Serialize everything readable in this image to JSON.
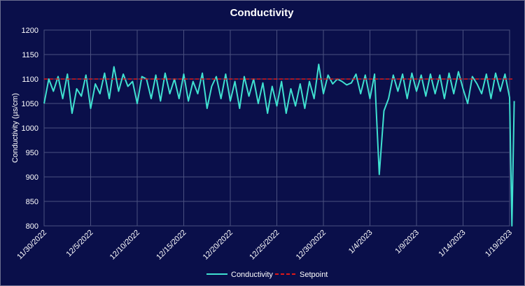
{
  "chart_data": {
    "type": "line",
    "title": "Conductivity",
    "ylabel": "Conductivity (µs/cm)",
    "xlabel": "",
    "ylim": [
      800,
      1200
    ],
    "yticks": [
      800,
      850,
      900,
      950,
      1000,
      1050,
      1100,
      1150,
      1200
    ],
    "xlim": [
      "2022-11-30",
      "2023-01-19"
    ],
    "xticks": [
      "11/30/2022",
      "12/5/2022",
      "12/10/2022",
      "12/15/2022",
      "12/20/2022",
      "12/25/2022",
      "12/30/2022",
      "1/4/2023",
      "1/9/2023",
      "1/14/2023",
      "1/19/2023"
    ],
    "grid": true,
    "legend": "bottom",
    "colors": {
      "conductivity": "#3fe0d0",
      "setpoint": "#e01818",
      "background": "#0a0f4a",
      "grid": "#4a5080"
    },
    "series": [
      {
        "name": "Conductivity",
        "style": "solid",
        "x": [
          "2022-11-30",
          "2022-11-30T12:00",
          "2022-12-01",
          "2022-12-01T12:00",
          "2022-12-02",
          "2022-12-02T12:00",
          "2022-12-03",
          "2022-12-03T12:00",
          "2022-12-04",
          "2022-12-04T12:00",
          "2022-12-05",
          "2022-12-05T12:00",
          "2022-12-06",
          "2022-12-06T12:00",
          "2022-12-07",
          "2022-12-07T12:00",
          "2022-12-08",
          "2022-12-08T12:00",
          "2022-12-09",
          "2022-12-09T12:00",
          "2022-12-10",
          "2022-12-10T12:00",
          "2022-12-11",
          "2022-12-11T12:00",
          "2022-12-12",
          "2022-12-12T12:00",
          "2022-12-13",
          "2022-12-13T12:00",
          "2022-12-14",
          "2022-12-14T12:00",
          "2022-12-15",
          "2022-12-15T12:00",
          "2022-12-16",
          "2022-12-16T12:00",
          "2022-12-17",
          "2022-12-17T12:00",
          "2022-12-18",
          "2022-12-18T12:00",
          "2022-12-19",
          "2022-12-19T12:00",
          "2022-12-20",
          "2022-12-20T12:00",
          "2022-12-21",
          "2022-12-21T12:00",
          "2022-12-22",
          "2022-12-22T12:00",
          "2022-12-23",
          "2022-12-23T12:00",
          "2022-12-24",
          "2022-12-24T12:00",
          "2022-12-25",
          "2022-12-25T12:00",
          "2022-12-26",
          "2022-12-26T12:00",
          "2022-12-27",
          "2022-12-27T12:00",
          "2022-12-28",
          "2022-12-28T12:00",
          "2022-12-29",
          "2022-12-29T12:00",
          "2022-12-30",
          "2022-12-30T12:00",
          "2022-12-31",
          "2022-12-31T12:00",
          "2023-01-01",
          "2023-01-01T12:00",
          "2023-01-02",
          "2023-01-02T12:00",
          "2023-01-03",
          "2023-01-03T12:00",
          "2023-01-04",
          "2023-01-04T12:00",
          "2023-01-05",
          "2023-01-05T12:00",
          "2023-01-06",
          "2023-01-06T12:00",
          "2023-01-07",
          "2023-01-07T12:00",
          "2023-01-08",
          "2023-01-08T12:00",
          "2023-01-09",
          "2023-01-09T12:00",
          "2023-01-10",
          "2023-01-10T12:00",
          "2023-01-11",
          "2023-01-11T12:00",
          "2023-01-12",
          "2023-01-12T12:00",
          "2023-01-13",
          "2023-01-13T12:00",
          "2023-01-14",
          "2023-01-14T12:00",
          "2023-01-15",
          "2023-01-15T12:00",
          "2023-01-16",
          "2023-01-16T12:00",
          "2023-01-17",
          "2023-01-17T12:00",
          "2023-01-18",
          "2023-01-18T12:00",
          "2023-01-19",
          "2023-01-19T06:00",
          "2023-01-19T12:00"
        ],
        "values": [
          1050,
          1100,
          1075,
          1105,
          1060,
          1110,
          1030,
          1080,
          1065,
          1108,
          1040,
          1090,
          1070,
          1112,
          1060,
          1125,
          1075,
          1110,
          1085,
          1095,
          1050,
          1105,
          1100,
          1060,
          1108,
          1055,
          1112,
          1070,
          1100,
          1060,
          1110,
          1055,
          1095,
          1070,
          1112,
          1040,
          1085,
          1105,
          1060,
          1110,
          1055,
          1095,
          1040,
          1105,
          1065,
          1100,
          1050,
          1092,
          1030,
          1085,
          1045,
          1095,
          1030,
          1080,
          1045,
          1090,
          1040,
          1095,
          1060,
          1130,
          1070,
          1108,
          1090,
          1100,
          1095,
          1088,
          1092,
          1110,
          1070,
          1108,
          1060,
          1110,
          905,
          1035,
          1060,
          1108,
          1075,
          1110,
          1060,
          1112,
          1075,
          1108,
          1065,
          1110,
          1070,
          1108,
          1060,
          1112,
          1070,
          1115,
          1080,
          1050,
          1105,
          1090,
          1070,
          1110,
          1060,
          1112,
          1075,
          1110,
          1062,
          800,
          1055
        ]
      },
      {
        "name": "Setpoint",
        "style": "dashed",
        "x": [
          "2022-11-30",
          "2023-01-19T12:00"
        ],
        "values": [
          1100,
          1100
        ]
      }
    ]
  }
}
